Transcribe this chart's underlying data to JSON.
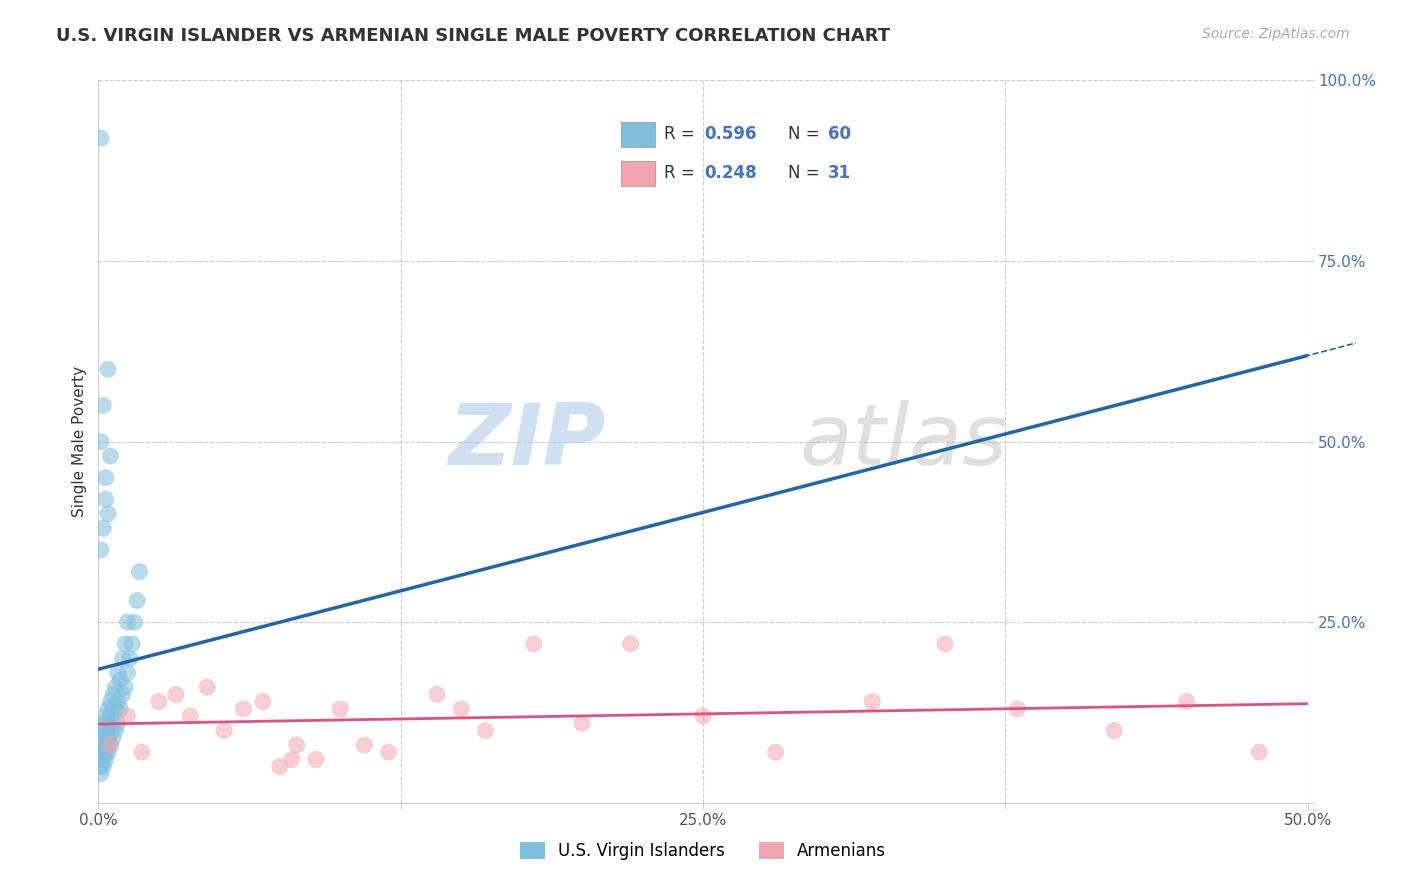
{
  "title": "U.S. VIRGIN ISLANDER VS ARMENIAN SINGLE MALE POVERTY CORRELATION CHART",
  "source": "Source: ZipAtlas.com",
  "ylabel": "Single Male Poverty",
  "xlim": [
    0.0,
    0.5
  ],
  "ylim": [
    0.0,
    1.0
  ],
  "xticks": [
    0.0,
    0.125,
    0.25,
    0.375,
    0.5
  ],
  "xticklabels": [
    "0.0%",
    "",
    "25.0%",
    "",
    "50.0%"
  ],
  "yticks": [
    0.0,
    0.25,
    0.5,
    0.75,
    1.0
  ],
  "yticklabels": [
    "",
    "25.0%",
    "50.0%",
    "75.0%",
    "100.0%"
  ],
  "blue_R": 0.596,
  "blue_N": 60,
  "pink_R": 0.248,
  "pink_N": 31,
  "blue_color": "#7fbfdd",
  "pink_color": "#f4a4b0",
  "blue_line_color": "#2266aa",
  "pink_line_color": "#e05080",
  "legend_label_blue": "U.S. Virgin Islanders",
  "legend_label_pink": "Armenians",
  "blue_scatter_x": [
    0.001,
    0.001,
    0.001,
    0.001,
    0.001,
    0.002,
    0.002,
    0.002,
    0.002,
    0.002,
    0.002,
    0.002,
    0.003,
    0.003,
    0.003,
    0.003,
    0.003,
    0.003,
    0.004,
    0.004,
    0.004,
    0.004,
    0.004,
    0.005,
    0.005,
    0.005,
    0.005,
    0.006,
    0.006,
    0.006,
    0.006,
    0.007,
    0.007,
    0.007,
    0.008,
    0.008,
    0.008,
    0.009,
    0.009,
    0.01,
    0.01,
    0.011,
    0.011,
    0.012,
    0.012,
    0.013,
    0.014,
    0.015,
    0.016,
    0.017,
    0.002,
    0.003,
    0.003,
    0.004,
    0.005,
    0.001,
    0.001,
    0.002,
    0.001,
    0.004
  ],
  "blue_scatter_y": [
    0.04,
    0.05,
    0.06,
    0.07,
    0.08,
    0.05,
    0.06,
    0.07,
    0.08,
    0.09,
    0.1,
    0.11,
    0.06,
    0.07,
    0.08,
    0.09,
    0.1,
    0.12,
    0.07,
    0.08,
    0.09,
    0.11,
    0.13,
    0.08,
    0.1,
    0.12,
    0.14,
    0.09,
    0.11,
    0.13,
    0.15,
    0.1,
    0.13,
    0.16,
    0.11,
    0.14,
    0.18,
    0.13,
    0.17,
    0.15,
    0.2,
    0.16,
    0.22,
    0.18,
    0.25,
    0.2,
    0.22,
    0.25,
    0.28,
    0.32,
    0.38,
    0.42,
    0.45,
    0.4,
    0.48,
    0.35,
    0.5,
    0.55,
    0.92,
    0.6
  ],
  "pink_scatter_x": [
    0.005,
    0.012,
    0.018,
    0.025,
    0.032,
    0.038,
    0.045,
    0.052,
    0.06,
    0.068,
    0.075,
    0.082,
    0.09,
    0.1,
    0.11,
    0.12,
    0.14,
    0.16,
    0.18,
    0.2,
    0.22,
    0.25,
    0.28,
    0.32,
    0.35,
    0.38,
    0.42,
    0.45,
    0.48,
    0.08,
    0.15
  ],
  "pink_scatter_y": [
    0.08,
    0.12,
    0.07,
    0.14,
    0.15,
    0.12,
    0.16,
    0.1,
    0.13,
    0.14,
    0.05,
    0.08,
    0.06,
    0.13,
    0.08,
    0.07,
    0.15,
    0.1,
    0.22,
    0.11,
    0.22,
    0.12,
    0.07,
    0.14,
    0.22,
    0.13,
    0.1,
    0.14,
    0.07,
    0.06,
    0.13
  ],
  "watermark_zip": "ZIP",
  "watermark_atlas": "atlas",
  "background_color": "#ffffff",
  "grid_color": "#cccccc"
}
